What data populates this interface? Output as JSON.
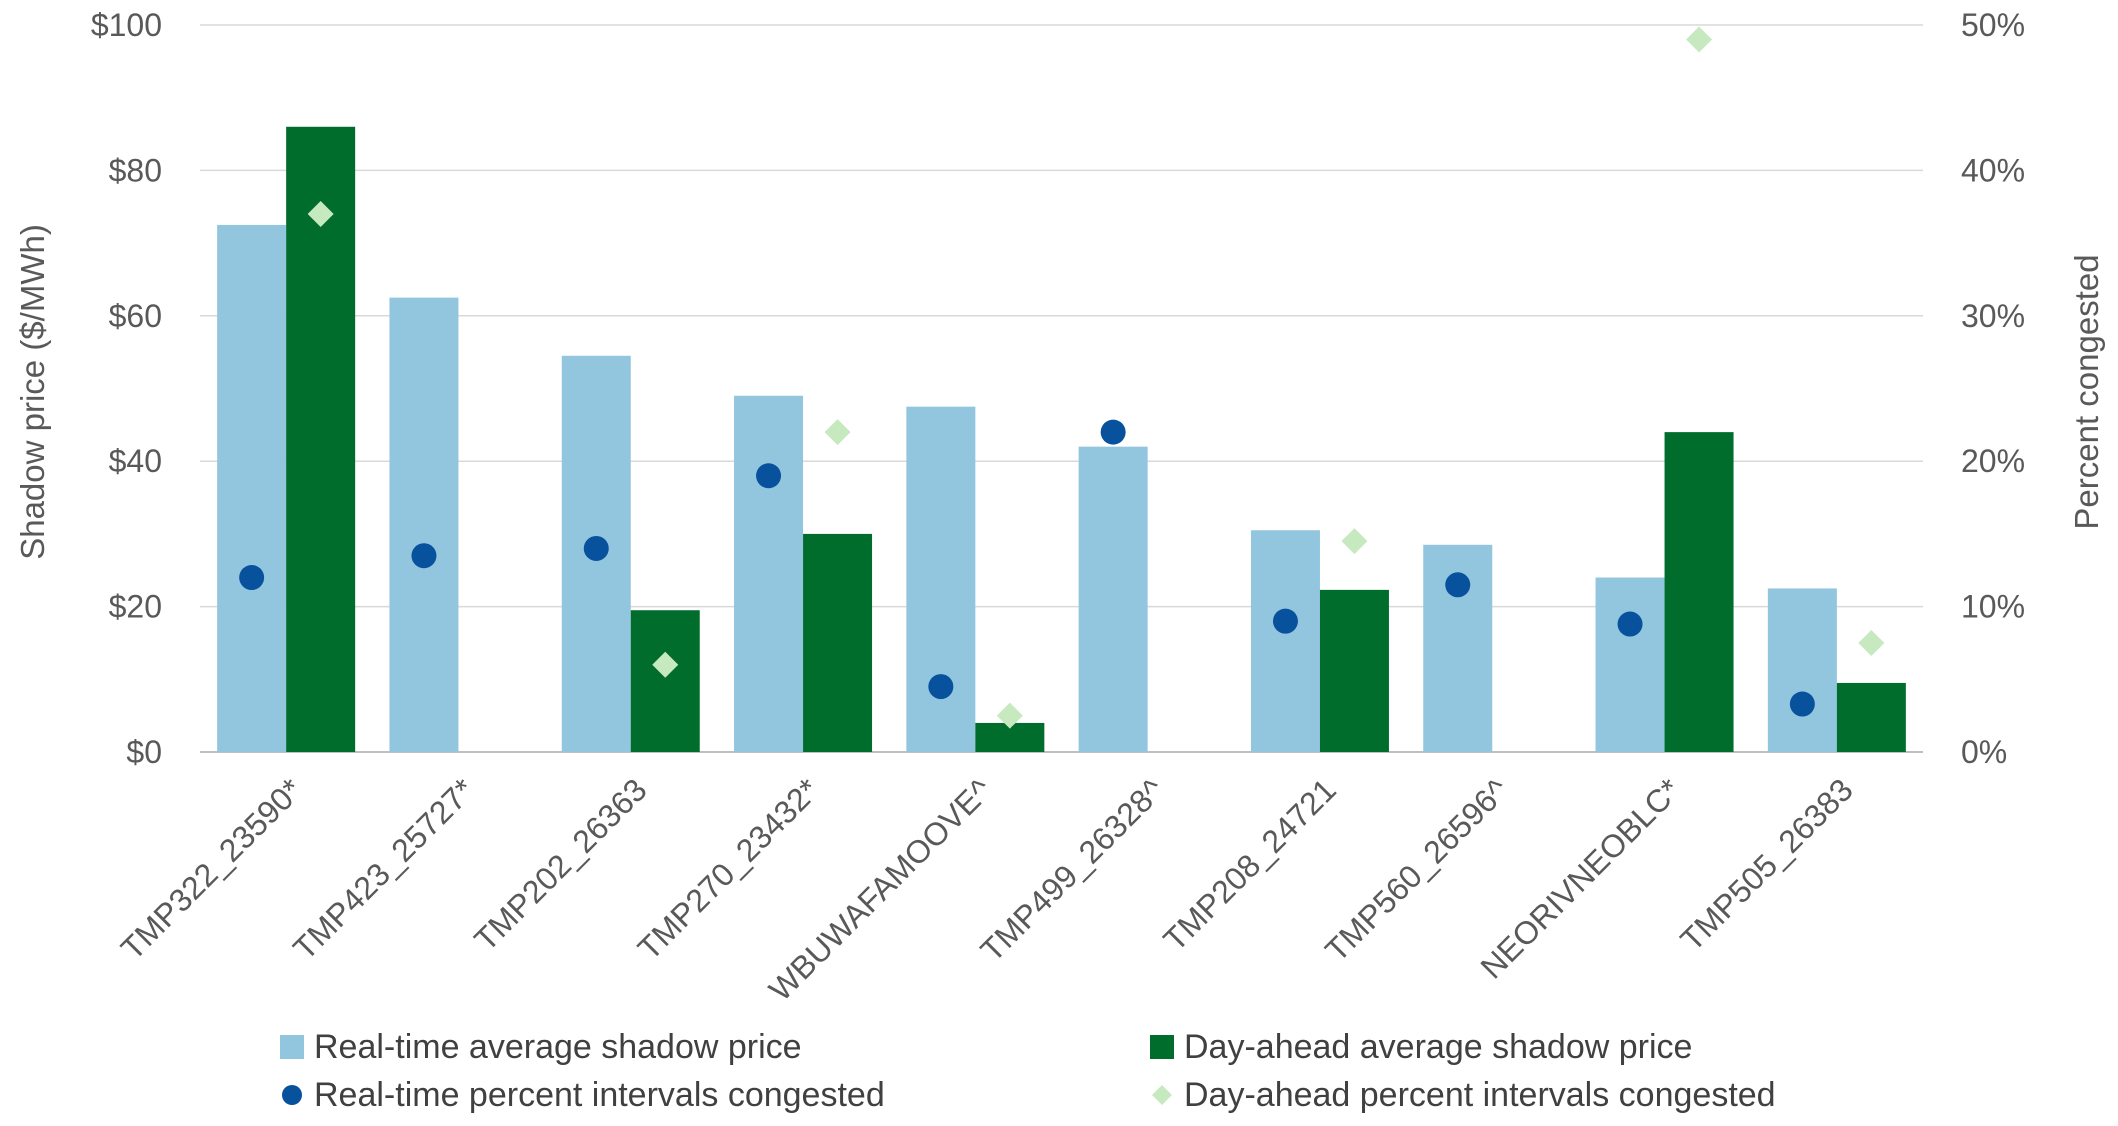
{
  "chart_data": {
    "type": "bar",
    "categories": [
      "TMP322_23590*",
      "TMP423_25727*",
      "TMP202_26363",
      "TMP270_23432*",
      "WBUWAFAMOOVE^",
      "TMP499_26328^",
      "TMP208_24721",
      "TMP560_26596^",
      "NEORIVNEOBLC*",
      "TMP505_26383"
    ],
    "series": [
      {
        "name": "Real-time average shadow price",
        "type": "bar",
        "axis": "left",
        "color": "#92c5de",
        "values": [
          72.5,
          62.5,
          54.5,
          49,
          47.5,
          42,
          30.5,
          28.5,
          24,
          22.5
        ]
      },
      {
        "name": "Day-ahead average shadow price",
        "type": "bar",
        "axis": "left",
        "color": "#006d2c",
        "values": [
          86,
          null,
          19.5,
          30,
          4,
          null,
          22.3,
          null,
          44,
          9.5
        ]
      },
      {
        "name": "Real-time percent intervals congested",
        "type": "scatter",
        "marker": "circle",
        "axis": "right",
        "color": "#08519c",
        "values": [
          12,
          13.5,
          14,
          19,
          4.5,
          22,
          9,
          11.5,
          8.8,
          3.3
        ]
      },
      {
        "name": "Day-ahead percent intervals congested",
        "type": "scatter",
        "marker": "diamond",
        "axis": "right",
        "color": "#c7e9c0",
        "values": [
          37,
          null,
          6,
          22,
          2.5,
          null,
          14.5,
          null,
          49,
          7.5
        ]
      }
    ],
    "ylabel": "Shadow price ($/MWh)",
    "ylim": [
      0,
      100
    ],
    "yticks": [
      "$0",
      "$20",
      "$40",
      "$60",
      "$80",
      "$100"
    ],
    "ylabel_right": "Percent congested",
    "ylim_right": [
      0,
      50
    ],
    "yticks_right": [
      "0%",
      "10%",
      "20%",
      "30%",
      "40%",
      "50%"
    ],
    "grid": true,
    "legend_position": "bottom"
  }
}
